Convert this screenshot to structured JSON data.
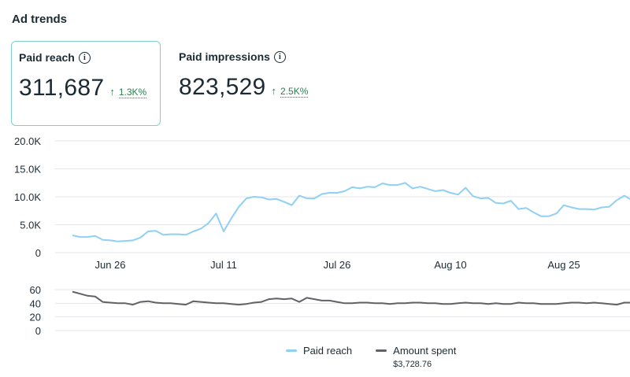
{
  "header": {
    "title": "Ad trends"
  },
  "cards": [
    {
      "label": "Paid reach",
      "value": "311,687",
      "delta": "1.3K%",
      "selected": true
    },
    {
      "label": "Paid impressions",
      "value": "823,529",
      "delta": "2.5K%",
      "selected": false
    }
  ],
  "chart_data": [
    {
      "type": "line",
      "series": [
        {
          "name": "Paid reach",
          "color": "#8fd0f5",
          "values": [
            3100,
            2800,
            2800,
            3000,
            2300,
            2200,
            2000,
            2100,
            2200,
            2700,
            3800,
            3900,
            3200,
            3300,
            3300,
            3200,
            3800,
            4300,
            5300,
            7000,
            3800,
            6100,
            8200,
            9700,
            10000,
            9900,
            9500,
            9600,
            9100,
            8500,
            10200,
            9700,
            9700,
            10500,
            10700,
            10700,
            11000,
            11700,
            11500,
            11800,
            11700,
            12400,
            12100,
            12100,
            12500,
            11500,
            11800,
            11400,
            11000,
            11200,
            10700,
            10400,
            11600,
            10100,
            9700,
            9800,
            8900,
            8800,
            9300,
            7800,
            8000,
            7200,
            6500,
            6500,
            7000,
            8500,
            8100,
            7800,
            7800,
            7700,
            8100,
            8200,
            9400,
            10200,
            9400,
            9000
          ]
        }
      ],
      "x_tick_labels": [
        "Jun 26",
        "Jul 11",
        "Jul 26",
        "Aug 10",
        "Aug 25"
      ],
      "y_tick_labels": [
        "0",
        "5.0K",
        "10.0K",
        "15.0K",
        "20.0K"
      ],
      "ylim": [
        0,
        20000
      ]
    },
    {
      "type": "line",
      "series": [
        {
          "name": "Amount spent",
          "color": "#606266",
          "values": [
            57,
            54,
            51,
            50,
            42,
            41,
            40,
            40,
            38,
            42,
            43,
            41,
            40,
            40,
            39,
            38,
            43,
            42,
            41,
            40,
            40,
            39,
            38,
            39,
            41,
            42,
            46,
            47,
            46,
            47,
            42,
            48,
            46,
            44,
            44,
            42,
            40,
            40,
            41,
            41,
            40,
            40,
            39,
            40,
            40,
            41,
            41,
            40,
            40,
            39,
            39,
            40,
            41,
            40,
            40,
            39,
            40,
            39,
            39,
            41,
            40,
            40,
            39,
            39,
            39,
            40,
            41,
            41,
            40,
            41,
            40,
            39,
            38,
            41,
            41,
            40
          ]
        }
      ],
      "y_tick_labels": [
        "0",
        "20",
        "40",
        "60"
      ],
      "ylim": [
        0,
        70
      ]
    }
  ],
  "legend": {
    "items": [
      {
        "label": "Paid reach",
        "color": "#8fd0f5",
        "sub": ""
      },
      {
        "label": "Amount spent",
        "color": "#606266",
        "sub": "$3,728.76"
      }
    ]
  }
}
